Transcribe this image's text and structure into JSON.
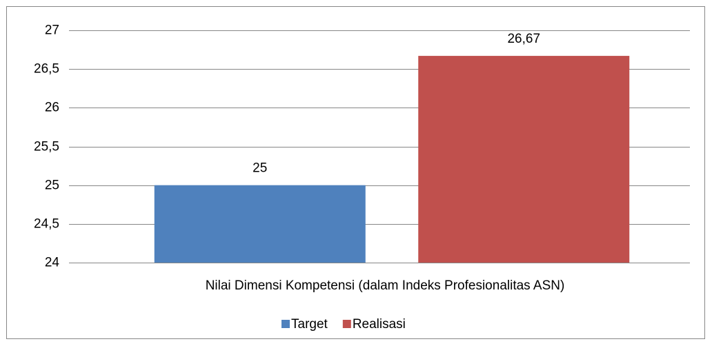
{
  "chart_data": {
    "type": "bar",
    "categories": [
      "Nilai Dimensi Kompetensi (dalam Indeks Profesionalitas ASN)"
    ],
    "series": [
      {
        "name": "Target",
        "color": "#4f81bd",
        "values": [
          25
        ]
      },
      {
        "name": "Realisasi",
        "color": "#c0504d",
        "values": [
          26.67
        ],
        "value_labels": [
          "26,67"
        ]
      }
    ],
    "ylim": [
      24,
      27
    ],
    "yticks": [
      24,
      {
        "value": 24.5,
        "label": "24,5"
      },
      25,
      {
        "value": 25.5,
        "label": "25,5"
      },
      26,
      {
        "value": 26.5,
        "label": "26,5"
      },
      27
    ],
    "grid": true,
    "legend": "bottom"
  }
}
